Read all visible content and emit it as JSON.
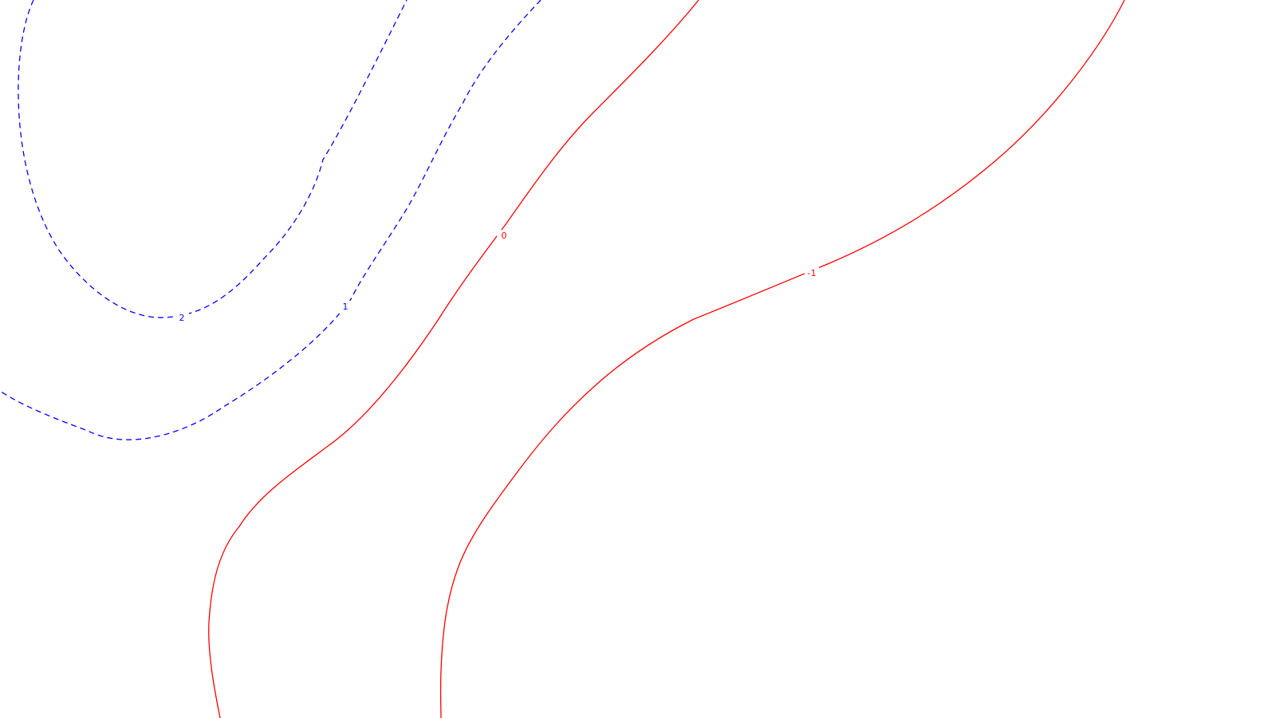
{
  "chart_data": {
    "type": "contour",
    "title": "",
    "xlabel": "",
    "ylabel": "",
    "grid": false,
    "legend": "none",
    "colors": {
      "positive": "#0000ff",
      "nonpositive": "#ff0000",
      "background": "#ffffff"
    },
    "levels": [
      {
        "value": 2,
        "label": "2",
        "style": "dashed",
        "color": "#0000ff"
      },
      {
        "value": 1,
        "label": "1",
        "style": "dashed",
        "color": "#0000ff"
      },
      {
        "value": 0,
        "label": "0",
        "style": "solid",
        "color": "#ff0000"
      },
      {
        "value": -1,
        "label": "-1",
        "style": "solid",
        "color": "#ff0000"
      }
    ]
  }
}
